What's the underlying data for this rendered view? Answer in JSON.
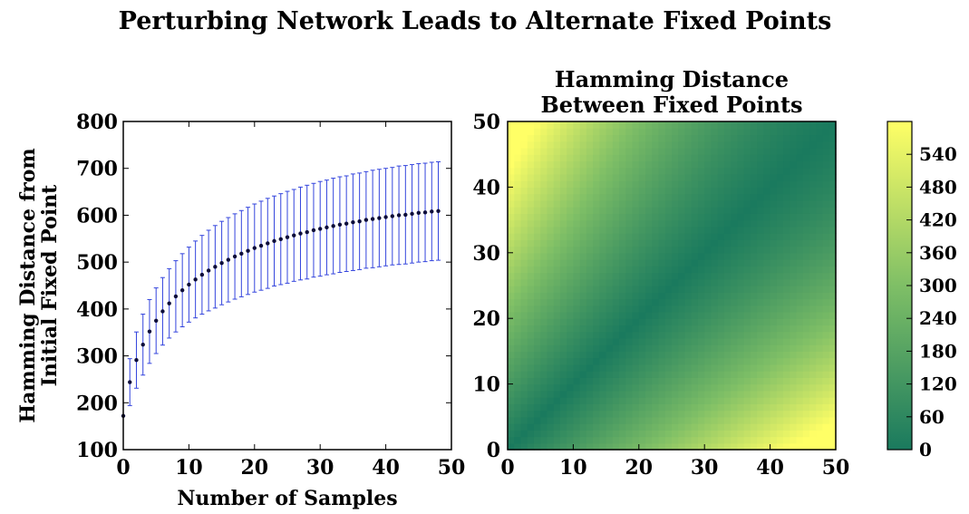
{
  "figure": {
    "suptitle": "Perturbing Network Leads to Alternate Fixed Points"
  },
  "chart_data": [
    {
      "type": "line",
      "title": "",
      "xlabel": "Number of Samples",
      "ylabel": [
        "Hamming Distance from",
        "Initial Fixed Point"
      ],
      "xlim": [
        0,
        50
      ],
      "ylim": [
        100,
        800
      ],
      "xticks": [
        "0",
        "10",
        "20",
        "30",
        "40",
        "50"
      ],
      "yticks": [
        "100",
        "200",
        "300",
        "400",
        "500",
        "600",
        "700",
        "800"
      ],
      "marker_color": "#0d0d3a",
      "errorbar_color": "#3344dd",
      "grid": false,
      "series": [
        {
          "x": [
            0,
            1,
            2,
            3,
            4,
            5,
            6,
            7,
            8,
            9,
            10,
            11,
            12,
            13,
            14,
            15,
            16,
            17,
            18,
            19,
            20,
            21,
            22,
            23,
            24,
            25,
            26,
            27,
            28,
            29,
            30,
            31,
            32,
            33,
            34,
            35,
            36,
            37,
            38,
            39,
            40,
            41,
            42,
            43,
            44,
            45,
            46,
            47,
            48
          ],
          "y": [
            172,
            244,
            291,
            324,
            352,
            375,
            395,
            412,
            427,
            440,
            452,
            463,
            473,
            482,
            490,
            498,
            505,
            512,
            518,
            524,
            530,
            535,
            540,
            545,
            549,
            553,
            557,
            561,
            564,
            568,
            571,
            574,
            577,
            580,
            582,
            585,
            587,
            590,
            592,
            594,
            596,
            598,
            600,
            601,
            603,
            605,
            606,
            608,
            609
          ],
          "yerr": [
            0,
            50,
            60,
            65,
            68,
            70,
            72,
            74,
            76,
            78,
            80,
            82,
            84,
            86,
            88,
            89,
            90,
            91,
            92,
            93,
            94,
            95,
            96,
            96,
            97,
            98,
            98,
            99,
            100,
            100,
            101,
            101,
            102,
            102,
            102,
            103,
            103,
            103,
            104,
            104,
            104,
            104,
            105,
            105,
            105,
            105,
            105,
            105,
            105
          ]
        }
      ]
    },
    {
      "type": "heatmap",
      "title": [
        "Hamming Distance",
        "Between Fixed Points"
      ],
      "xlim": [
        0,
        50
      ],
      "ylim": [
        0,
        50
      ],
      "xticks": [
        "0",
        "10",
        "20",
        "30",
        "40",
        "50"
      ],
      "yticks": [
        "0",
        "10",
        "20",
        "30",
        "40",
        "50"
      ],
      "value_description": "distance grows with |i-j|; approx value(i,j) = 600*(1-exp(-|i-j|/6)) scaled",
      "cells": 50,
      "vmin": 0,
      "vmax": 600,
      "colormap": "summer",
      "colorbar_ticks": [
        "0",
        "60",
        "120",
        "180",
        "240",
        "300",
        "360",
        "420",
        "480",
        "540"
      ],
      "colors": {
        "low": "#1a7a5e",
        "mid": "#5faa5e",
        "high": "#ffff66"
      }
    }
  ]
}
